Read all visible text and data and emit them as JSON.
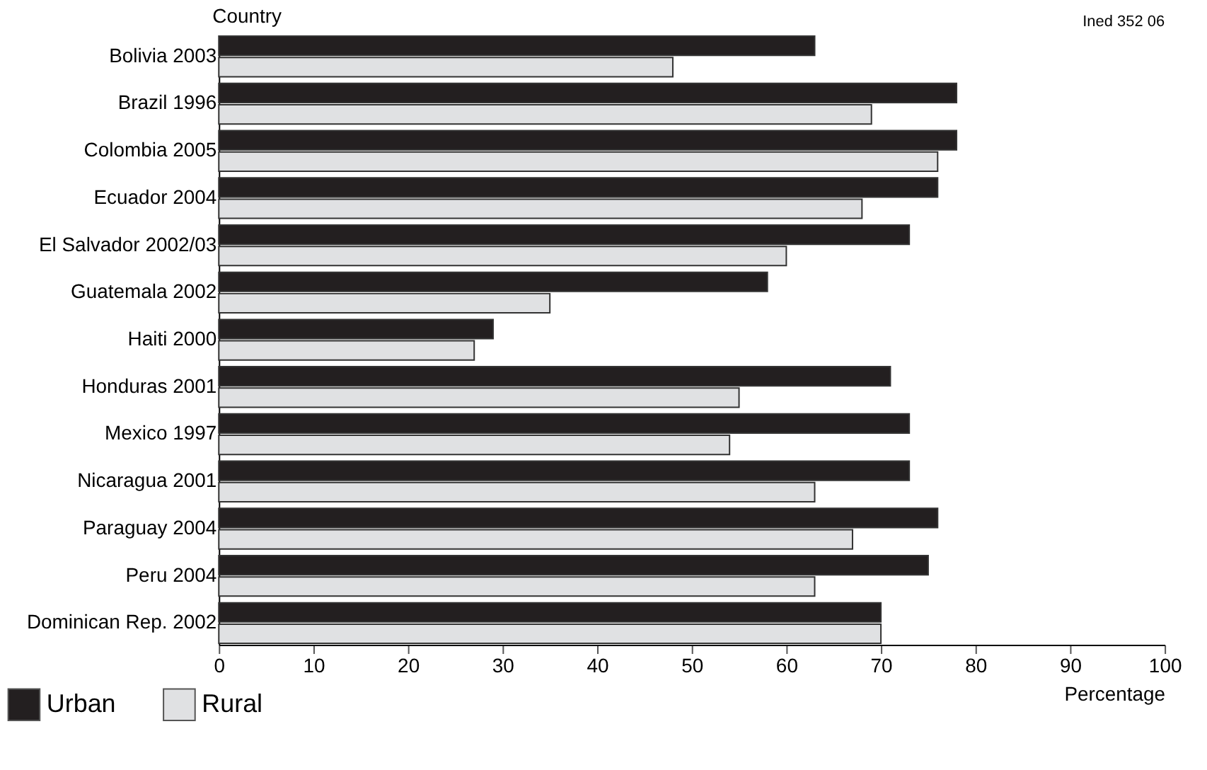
{
  "chart_data": {
    "type": "bar",
    "orientation": "horizontal",
    "xlabel": "Percentage",
    "ylabel": "Country",
    "annotations": [
      "Ined 352 06"
    ],
    "categories": [
      "Bolivia 2003",
      "Brazil 1996",
      "Colombia 2005",
      "Ecuador 2004",
      "El Salvador 2002/03",
      "Guatemala 2002",
      "Haiti 2000",
      "Honduras 2001",
      "Mexico 1997",
      "Nicaragua 2001",
      "Paraguay 2004",
      "Peru 2004",
      "Dominican Rep. 2002"
    ],
    "series": [
      {
        "name": "Urban",
        "color": "#231f20",
        "values": [
          63,
          78,
          78,
          76,
          73,
          58,
          29,
          71,
          73,
          73,
          76,
          75,
          70
        ]
      },
      {
        "name": "Rural",
        "color": "#e0e1e3",
        "values": [
          48,
          69,
          76,
          68,
          60,
          35,
          27,
          55,
          54,
          63,
          67,
          63,
          70
        ]
      }
    ],
    "xlim": [
      0,
      100
    ],
    "xticks": [
      0,
      10,
      20,
      30,
      40,
      50,
      60,
      70,
      80,
      90,
      100
    ],
    "grid": false,
    "legend": "bottom left"
  }
}
